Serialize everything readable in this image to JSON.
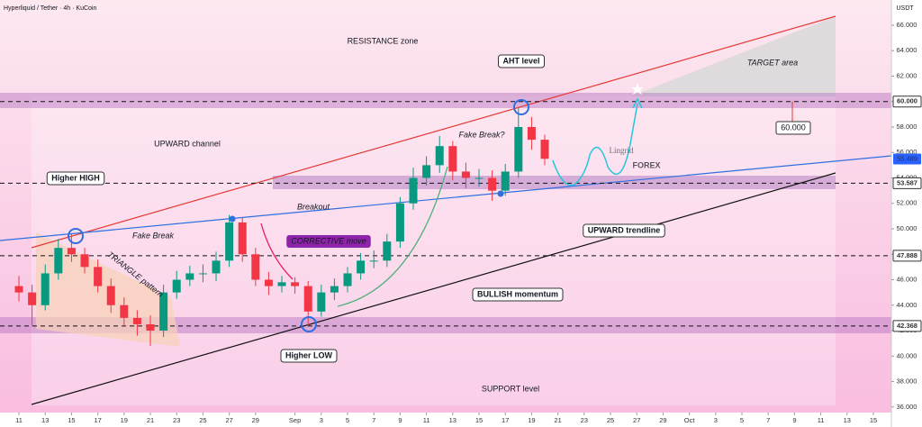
{
  "chart_data": {
    "type": "candlestick",
    "title": "Hyperliquid / Tether · 4h · KuCoin",
    "currency": "USDT",
    "x": [
      0,
      1,
      2,
      3,
      4,
      5,
      6,
      7,
      8,
      9,
      10,
      11,
      12,
      13,
      14,
      15,
      16,
      17,
      18,
      19,
      20,
      21,
      22,
      23,
      24,
      25,
      26,
      27,
      28,
      29,
      30,
      31,
      32,
      33,
      34,
      35,
      36,
      37,
      38,
      39,
      40
    ],
    "open": [
      45.5,
      45,
      44,
      46.5,
      48.5,
      48,
      47,
      45.5,
      44,
      43,
      42.5,
      42,
      45,
      46,
      46.5,
      46.5,
      47.5,
      50.5,
      48,
      46,
      45.5,
      45.8,
      45.5,
      43.5,
      45,
      45.5,
      46.5,
      47.5,
      47.5,
      49,
      52,
      54,
      55,
      56.5,
      54.5,
      54,
      54,
      53,
      54.5,
      58,
      57
    ],
    "high": [
      46.3,
      45.6,
      47.2,
      49.2,
      49.6,
      48.5,
      47.6,
      46.1,
      44.6,
      43.6,
      43.2,
      45.6,
      46.7,
      47.1,
      47.2,
      48.2,
      51.1,
      50.9,
      48.5,
      46.6,
      46.3,
      46.2,
      45.9,
      45.6,
      46.1,
      47,
      48.1,
      48.3,
      49.6,
      52.5,
      54.8,
      55.7,
      57.3,
      56.9,
      55.2,
      54.7,
      54.6,
      55.1,
      59.5,
      58.8,
      57.4
    ],
    "low": [
      44.3,
      42.4,
      43.6,
      46,
      47.4,
      46.5,
      45,
      43.4,
      42.3,
      41.6,
      40.8,
      41.5,
      44.5,
      45.5,
      45.8,
      45.9,
      47,
      47.4,
      45.5,
      44.8,
      45,
      44.9,
      42.4,
      43.1,
      44.4,
      45,
      46,
      46.9,
      47,
      48.5,
      51.5,
      53.4,
      54.4,
      53.8,
      53.2,
      53.3,
      52.2,
      52.6,
      54,
      56.2,
      55
    ],
    "close": [
      45,
      44,
      46.5,
      48.5,
      48,
      47,
      45.5,
      44,
      43,
      42.5,
      42,
      45,
      46,
      46.5,
      46.5,
      47.5,
      50.5,
      48,
      46,
      45.5,
      45.8,
      45.5,
      43.5,
      45,
      45.5,
      46.5,
      47.5,
      47.5,
      49,
      52,
      54,
      55,
      56.5,
      54.5,
      54,
      54,
      53,
      54.5,
      58,
      57,
      55.5
    ],
    "up_color": "#089981",
    "down_color": "#f23645",
    "xlim": [
      -1.44,
      66.37
    ],
    "xticks": [
      {
        "value": 0,
        "label": "11"
      },
      {
        "value": 2,
        "label": "13"
      },
      {
        "value": 4,
        "label": "15"
      },
      {
        "value": 6,
        "label": "17"
      },
      {
        "value": 8,
        "label": "19"
      },
      {
        "value": 10,
        "label": "21"
      },
      {
        "value": 12,
        "label": "23"
      },
      {
        "value": 14,
        "label": "25"
      },
      {
        "value": 16,
        "label": "27"
      },
      {
        "value": 18,
        "label": "29"
      },
      {
        "value": 21,
        "label": "Sep"
      },
      {
        "value": 23,
        "label": "3"
      },
      {
        "value": 25,
        "label": "5"
      },
      {
        "value": 27,
        "label": "7"
      },
      {
        "value": 29,
        "label": "9"
      },
      {
        "value": 31,
        "label": "11"
      },
      {
        "value": 33,
        "label": "13"
      },
      {
        "value": 35,
        "label": "15"
      },
      {
        "value": 37,
        "label": "17"
      },
      {
        "value": 39,
        "label": "19"
      },
      {
        "value": 41,
        "label": "21"
      },
      {
        "value": 43,
        "label": "23"
      },
      {
        "value": 45,
        "label": "25"
      },
      {
        "value": 47,
        "label": "27"
      },
      {
        "value": 49,
        "label": "29"
      },
      {
        "value": 51,
        "label": "Oct"
      },
      {
        "value": 53,
        "label": "3"
      },
      {
        "value": 55,
        "label": "5"
      },
      {
        "value": 57,
        "label": "7"
      },
      {
        "value": 59,
        "label": "9"
      },
      {
        "value": 61,
        "label": "11"
      },
      {
        "value": 63,
        "label": "13"
      },
      {
        "value": 65,
        "label": "15"
      }
    ],
    "ylim": [
      35.56,
      67.98
    ],
    "yticks": [
      {
        "value": 36,
        "label": "36.000"
      },
      {
        "value": 38,
        "label": "38.000"
      },
      {
        "value": 40,
        "label": "40.000"
      },
      {
        "value": 42,
        "label": "42.000"
      },
      {
        "value": 44,
        "label": "44.000"
      },
      {
        "value": 46,
        "label": "46.000"
      },
      {
        "value": 48,
        "label": "48.000"
      },
      {
        "value": 50,
        "label": "50.000"
      },
      {
        "value": 52,
        "label": "52.000"
      },
      {
        "value": 54,
        "label": "54.000"
      },
      {
        "value": 56,
        "label": "56.000"
      },
      {
        "value": 58,
        "label": "58.000"
      },
      {
        "value": 60,
        "label": "60.000"
      },
      {
        "value": 62,
        "label": "62.000"
      },
      {
        "value": 64,
        "label": "64.000"
      },
      {
        "value": 66,
        "label": "66.000"
      }
    ],
    "levels": [
      {
        "value": 60,
        "label": "60.000"
      },
      {
        "value": 53.587,
        "label": "53.587"
      },
      {
        "value": 47.888,
        "label": "47.888"
      },
      {
        "value": 42.368,
        "label": "42.368"
      }
    ],
    "last_price": {
      "value": 55.489,
      "label": "55.489"
    },
    "grid": false,
    "annotations": [
      "RESISTANCE zone",
      "AHT level",
      "TARGET area",
      "UPWARD channel",
      "Higher HIGH",
      "Fake Break",
      "Breakout",
      "Fake Break?",
      "TRIANGLE pattern",
      "CORRECTIVE move",
      "BULLISH momentum",
      "UPWARD trendline",
      "Higher LOW",
      "SUPPORT level"
    ],
    "watermark": [
      "Lingrid",
      "FOREX"
    ]
  }
}
